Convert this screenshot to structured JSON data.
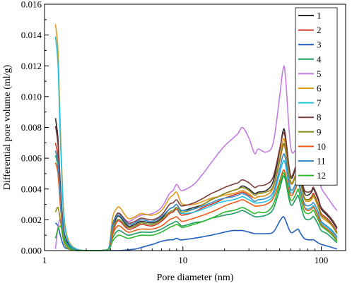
{
  "chart_data": {
    "type": "line",
    "title": "",
    "xlabel": "Pore diameter (nm)",
    "ylabel": "Differential pore volume (ml/g)",
    "x_scale": "log",
    "xlim": [
      1,
      150
    ],
    "ylim": [
      0,
      0.016
    ],
    "x_ticks": [
      {
        "value": 1,
        "label": "1"
      },
      {
        "value": 10,
        "label": "10"
      },
      {
        "value": 100,
        "label": "100"
      }
    ],
    "y_ticks": [
      {
        "value": 0,
        "label": "0.000"
      },
      {
        "value": 0.002,
        "label": "0.002"
      },
      {
        "value": 0.004,
        "label": "0.004"
      },
      {
        "value": 0.006,
        "label": "0.006"
      },
      {
        "value": 0.008,
        "label": "0.008"
      },
      {
        "value": 0.01,
        "label": "0.010"
      },
      {
        "value": 0.012,
        "label": "0.012"
      },
      {
        "value": 0.014,
        "label": "0.014"
      },
      {
        "value": 0.016,
        "label": "0.016"
      }
    ],
    "grid": false,
    "legend": "top-right",
    "x": [
      1.2,
      1.25,
      1.3,
      1.35,
      1.4,
      1.5,
      1.7,
      2.0,
      2.5,
      2.9,
      3.1,
      3.3,
      3.5,
      4.0,
      4.5,
      5.0,
      6.0,
      7.0,
      8.0,
      8.5,
      9.0,
      9.5,
      10,
      12,
      14,
      16,
      18,
      20,
      23,
      25,
      27,
      30,
      33,
      35,
      40,
      45,
      50,
      53,
      55,
      60,
      65,
      68,
      70,
      75,
      80,
      85,
      88,
      95,
      100,
      110,
      120,
      130
    ],
    "series": [
      {
        "name": "1",
        "color": "#2a2a2a",
        "values": [
          0.0086,
          0.0073,
          0.0043,
          0.0021,
          0.001,
          0.0004,
          5e-05,
          0,
          0,
          0.0001,
          0.0014,
          0.0021,
          0.0022,
          0.0016,
          0.0017,
          0.0019,
          0.0018,
          0.0021,
          0.0027,
          0.0028,
          0.003,
          0.0027,
          0.0026,
          0.0028,
          0.003,
          0.0033,
          0.0035,
          0.0037,
          0.0039,
          0.004,
          0.0042,
          0.004,
          0.0037,
          0.0038,
          0.0039,
          0.0045,
          0.0065,
          0.0078,
          0.0075,
          0.0048,
          0.0053,
          0.0059,
          0.0052,
          0.0038,
          0.0036,
          0.0038,
          0.004,
          0.0033,
          0.0027,
          0.0023,
          0.0019,
          0.0014
        ]
      },
      {
        "name": "2",
        "color": "#d23a2a",
        "values": [
          0.007,
          0.0061,
          0.0038,
          0.0018,
          0.0009,
          0.0003,
          5e-05,
          0,
          0,
          0.0001,
          0.0011,
          0.0018,
          0.0019,
          0.0014,
          0.0015,
          0.0017,
          0.0016,
          0.0019,
          0.0024,
          0.0025,
          0.0027,
          0.0024,
          0.0023,
          0.0025,
          0.0028,
          0.003,
          0.0032,
          0.0034,
          0.0036,
          0.0037,
          0.0038,
          0.0036,
          0.0034,
          0.0035,
          0.0036,
          0.0041,
          0.0058,
          0.0068,
          0.0066,
          0.0044,
          0.0048,
          0.0053,
          0.0047,
          0.0035,
          0.0033,
          0.0035,
          0.0037,
          0.003,
          0.0024,
          0.0021,
          0.0017,
          0.0012
        ]
      },
      {
        "name": "3",
        "color": "#1f5fbf",
        "values": [
          0.0018,
          0.0016,
          0.001,
          0.0005,
          0.0002,
          0.0001,
          0,
          0,
          0,
          0,
          0,
          0,
          0,
          5e-05,
          0.0001,
          0.0002,
          0.0004,
          0.0006,
          0.0007,
          0.0007,
          0.0008,
          0.0007,
          0.0007,
          0.0008,
          0.0009,
          0.001,
          0.0011,
          0.0012,
          0.0013,
          0.0013,
          0.0013,
          0.0012,
          0.0011,
          0.0011,
          0.0011,
          0.0012,
          0.0019,
          0.0022,
          0.002,
          0.0012,
          0.0013,
          0.0014,
          0.0012,
          0.0008,
          0.0007,
          0.0007,
          0.0007,
          0.0005,
          0.0004,
          0.0003,
          0.0002,
          0.0001
        ]
      },
      {
        "name": "4",
        "color": "#1e9a5e",
        "values": [
          0.0062,
          0.0054,
          0.0032,
          0.0015,
          0.0007,
          0.0002,
          0,
          0,
          0,
          5e-05,
          0.0008,
          0.0012,
          0.0013,
          0.001,
          0.0011,
          0.0012,
          0.0012,
          0.0014,
          0.0017,
          0.0018,
          0.0019,
          0.0017,
          0.0016,
          0.0018,
          0.0019,
          0.0021,
          0.0022,
          0.0023,
          0.0024,
          0.0025,
          0.0026,
          0.0024,
          0.0022,
          0.0022,
          0.0023,
          0.0027,
          0.004,
          0.0048,
          0.0046,
          0.003,
          0.0033,
          0.0036,
          0.0032,
          0.0022,
          0.002,
          0.0021,
          0.0022,
          0.0017,
          0.0013,
          0.0011,
          0.0008,
          0.0005
        ]
      },
      {
        "name": "5",
        "color": "#c27de0",
        "values": [
          0.0001,
          0.0015,
          0.002,
          0.0013,
          0.0006,
          0.0002,
          0,
          0,
          0,
          0.0001,
          0.0015,
          0.0023,
          0.0024,
          0.0019,
          0.0021,
          0.0023,
          0.0024,
          0.0028,
          0.0037,
          0.0039,
          0.0043,
          0.004,
          0.0039,
          0.0043,
          0.005,
          0.0057,
          0.0063,
          0.0068,
          0.0073,
          0.0076,
          0.008,
          0.0073,
          0.0063,
          0.0066,
          0.0064,
          0.007,
          0.01,
          0.0118,
          0.0114,
          0.0068,
          0.0065,
          0.007,
          0.0063,
          0.005,
          0.0051,
          0.0056,
          0.0058,
          0.0052,
          0.0041,
          0.0035,
          0.003,
          0.0026
        ]
      },
      {
        "name": "6",
        "color": "#e09a1a",
        "values": [
          0.0147,
          0.013,
          0.008,
          0.004,
          0.0018,
          0.0006,
          0.0001,
          0,
          0,
          0.0001,
          0.0021,
          0.0027,
          0.0028,
          0.0021,
          0.0022,
          0.0024,
          0.0023,
          0.0026,
          0.0034,
          0.0036,
          0.0038,
          0.0033,
          0.003,
          0.003,
          0.0032,
          0.0034,
          0.0035,
          0.0036,
          0.0037,
          0.0038,
          0.0039,
          0.0037,
          0.0034,
          0.0035,
          0.0036,
          0.0041,
          0.006,
          0.0072,
          0.0069,
          0.0045,
          0.0049,
          0.0054,
          0.0048,
          0.0034,
          0.0032,
          0.0033,
          0.0035,
          0.0028,
          0.0022,
          0.0019,
          0.0016,
          0.0011
        ]
      },
      {
        "name": "7",
        "color": "#22c2e0",
        "values": [
          0.0139,
          0.0121,
          0.0074,
          0.0036,
          0.0016,
          0.0005,
          0.0001,
          0,
          0,
          0.0001,
          0.0014,
          0.0019,
          0.002,
          0.0015,
          0.0016,
          0.0018,
          0.0017,
          0.002,
          0.0025,
          0.0026,
          0.0028,
          0.0025,
          0.0024,
          0.0025,
          0.0027,
          0.0029,
          0.0031,
          0.0032,
          0.0033,
          0.0034,
          0.0035,
          0.0033,
          0.0031,
          0.0031,
          0.0032,
          0.0036,
          0.005,
          0.0058,
          0.0056,
          0.0038,
          0.0041,
          0.0044,
          0.004,
          0.0029,
          0.0027,
          0.0028,
          0.0029,
          0.0023,
          0.0018,
          0.0015,
          0.0012,
          0.0008
        ]
      },
      {
        "name": "8",
        "color": "#7a3b3b",
        "values": [
          0.0081,
          0.0069,
          0.0041,
          0.002,
          0.0009,
          0.0003,
          5e-05,
          0,
          0,
          0.0001,
          0.0016,
          0.0023,
          0.0024,
          0.0018,
          0.0019,
          0.0021,
          0.002,
          0.0023,
          0.003,
          0.0031,
          0.0033,
          0.003,
          0.0029,
          0.0031,
          0.0034,
          0.0037,
          0.0039,
          0.0041,
          0.0043,
          0.0044,
          0.0046,
          0.0044,
          0.0041,
          0.0042,
          0.0043,
          0.0048,
          0.0066,
          0.0076,
          0.0073,
          0.0049,
          0.0054,
          0.0059,
          0.0053,
          0.004,
          0.0038,
          0.0039,
          0.0041,
          0.0034,
          0.0028,
          0.0024,
          0.002,
          0.0015
        ]
      },
      {
        "name": "9",
        "color": "#8c8c1e",
        "values": [
          0.0025,
          0.0028,
          0.002,
          0.001,
          0.0004,
          0.0001,
          0,
          0,
          0,
          0.0001,
          0.0013,
          0.0019,
          0.002,
          0.0015,
          0.0016,
          0.0018,
          0.0017,
          0.002,
          0.0025,
          0.0026,
          0.0028,
          0.0026,
          0.0025,
          0.0027,
          0.003,
          0.0033,
          0.0035,
          0.0037,
          0.0039,
          0.004,
          0.0041,
          0.0039,
          0.0036,
          0.0037,
          0.0038,
          0.0042,
          0.0059,
          0.0069,
          0.0066,
          0.0044,
          0.0048,
          0.0052,
          0.0047,
          0.0035,
          0.0033,
          0.0034,
          0.0036,
          0.0029,
          0.0023,
          0.002,
          0.0016,
          0.0011
        ]
      },
      {
        "name": "10",
        "color": "#f05a14",
        "values": [
          0.0057,
          0.005,
          0.003,
          0.0014,
          0.0006,
          0.0002,
          0,
          0,
          0,
          5e-05,
          0.001,
          0.0015,
          0.0016,
          0.0012,
          0.0013,
          0.0014,
          0.0014,
          0.0016,
          0.002,
          0.0021,
          0.0022,
          0.002,
          0.0019,
          0.0021,
          0.0023,
          0.0025,
          0.0027,
          0.0029,
          0.0031,
          0.0032,
          0.0033,
          0.0031,
          0.0029,
          0.0029,
          0.003,
          0.0034,
          0.0045,
          0.0052,
          0.005,
          0.0036,
          0.004,
          0.0045,
          0.0041,
          0.0029,
          0.0026,
          0.0027,
          0.0028,
          0.0022,
          0.0017,
          0.0014,
          0.0011,
          0.0007
        ]
      },
      {
        "name": "11",
        "color": "#3c8cc8",
        "values": [
          0.0065,
          0.0057,
          0.0035,
          0.0017,
          0.0008,
          0.0003,
          5e-05,
          0,
          0,
          0.0001,
          0.0017,
          0.0022,
          0.0023,
          0.0017,
          0.0018,
          0.002,
          0.0019,
          0.0022,
          0.0027,
          0.0028,
          0.003,
          0.0027,
          0.0026,
          0.0027,
          0.0029,
          0.0031,
          0.0033,
          0.0034,
          0.0035,
          0.0036,
          0.0037,
          0.0035,
          0.0032,
          0.0033,
          0.0034,
          0.0038,
          0.0053,
          0.0062,
          0.006,
          0.004,
          0.0043,
          0.0047,
          0.0042,
          0.0031,
          0.0029,
          0.003,
          0.0031,
          0.0025,
          0.0019,
          0.0016,
          0.0013,
          0.0009
        ]
      },
      {
        "name": "12",
        "color": "#2eb82e",
        "values": [
          0.0008,
          0.0014,
          0.0016,
          0.0012,
          0.0006,
          0.0002,
          0,
          0,
          0,
          5e-05,
          0.0006,
          0.0009,
          0.001,
          0.0008,
          0.0009,
          0.001,
          0.001,
          0.0012,
          0.0015,
          0.0016,
          0.0017,
          0.0016,
          0.0015,
          0.0017,
          0.0019,
          0.0021,
          0.0023,
          0.0025,
          0.0026,
          0.0027,
          0.0028,
          0.0026,
          0.0024,
          0.0025,
          0.0025,
          0.003,
          0.0043,
          0.005,
          0.0048,
          0.0033,
          0.0036,
          0.004,
          0.0036,
          0.0026,
          0.0024,
          0.0025,
          0.0026,
          0.002,
          0.0016,
          0.0013,
          0.001,
          0.0006
        ]
      }
    ]
  }
}
